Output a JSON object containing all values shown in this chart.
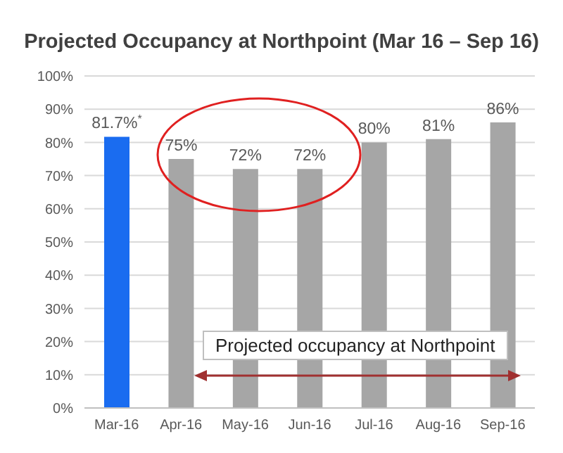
{
  "chart_data": {
    "type": "bar",
    "title": "Projected Occupancy at Northpoint (Mar 16 – Sep 16)",
    "categories": [
      "Mar-16",
      "Apr-16",
      "May-16",
      "Jun-16",
      "Jul-16",
      "Aug-16",
      "Sep-16"
    ],
    "values": [
      81.7,
      75,
      72,
      72,
      80,
      81,
      86
    ],
    "colors": [
      "#1a6cf0",
      "#a6a6a6",
      "#a6a6a6",
      "#a6a6a6",
      "#a6a6a6",
      "#a6a6a6",
      "#a6a6a6"
    ],
    "value_labels": [
      "81.7%$^{*}$",
      "75%",
      "72%",
      "72%",
      "80%",
      "81%",
      "86%"
    ],
    "ylim": [
      0,
      100
    ],
    "yticks": [
      {
        "value": 0,
        "label": "0%"
      },
      {
        "value": 10,
        "label": "10%"
      },
      {
        "value": 20,
        "label": "20%"
      },
      {
        "value": 30,
        "label": "30%"
      },
      {
        "value": 40,
        "label": "40%"
      },
      {
        "value": 50,
        "label": "50%"
      },
      {
        "value": 60,
        "label": "60%"
      },
      {
        "value": 70,
        "label": "70%"
      },
      {
        "value": 80,
        "label": "80%"
      },
      {
        "value": 90,
        "label": "90%"
      },
      {
        "value": 100,
        "label": "100%"
      }
    ],
    "grid": "y",
    "annotations": [
      "Projected occupancy at Northpoint"
    ]
  }
}
